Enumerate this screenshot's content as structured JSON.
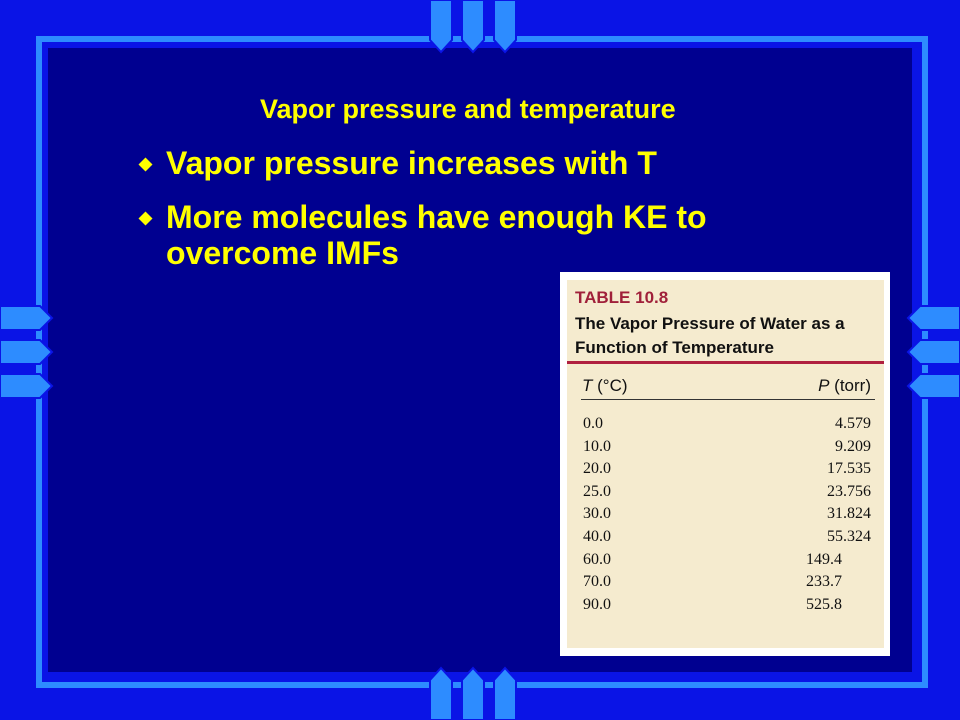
{
  "slide": {
    "title": "Vapor pressure and temperature",
    "bullets": [
      "Vapor pressure increases with T",
      "More molecules have enough KE to overcome IMFs"
    ],
    "table": {
      "label": "TABLE 10.8",
      "caption": "The Vapor Pressure of Water as a Function of Temperature",
      "headers": [
        "T (°C)",
        "P (torr)"
      ],
      "rows": [
        [
          "0.0",
          "4.579"
        ],
        [
          "10.0",
          "9.209"
        ],
        [
          "20.0",
          "17.535"
        ],
        [
          "25.0",
          "23.756"
        ],
        [
          "30.0",
          "31.824"
        ],
        [
          "40.0",
          "55.324"
        ],
        [
          "60.0",
          "149.4"
        ],
        [
          "70.0",
          "233.7"
        ],
        [
          "90.0",
          "525.8"
        ]
      ]
    }
  }
}
